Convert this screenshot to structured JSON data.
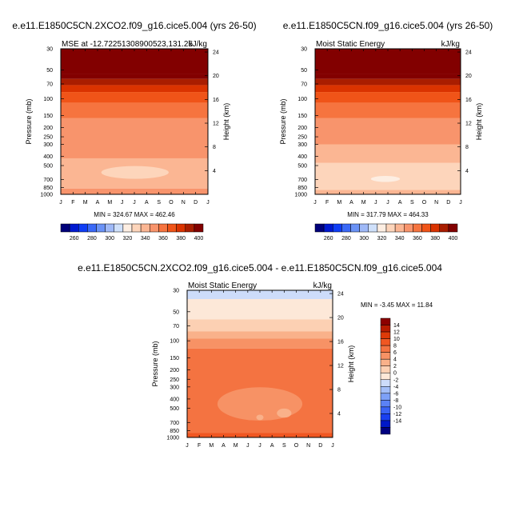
{
  "chart_data": [
    {
      "type": "heatmap",
      "title": "e.e11.E1850C5CN.2XCO2.f09_g16.cice5.004 (yrs 26-50)",
      "left_subtitle": "MSE at -12.72251308900523,131.25",
      "right_subtitle": "kJ/kg",
      "ylabel": "Pressure (mb)",
      "ylabel_right": "Height (km)",
      "x_ticks": [
        "J",
        "F",
        "M",
        "A",
        "M",
        "J",
        "J",
        "A",
        "S",
        "O",
        "N",
        "D",
        "J"
      ],
      "y_ticks": [
        "30",
        "50",
        "70",
        "100",
        "150",
        "200",
        "250",
        "300",
        "400",
        "500",
        "700",
        "850",
        "1000"
      ],
      "y_right_ticks": [
        "24",
        "20",
        "16",
        "12",
        "8",
        "4"
      ],
      "stats": "MIN = 324.67 MAX = 462.46",
      "colorbar_labels": [
        "260",
        "280",
        "300",
        "320",
        "340",
        "360",
        "380",
        "400"
      ],
      "bands": [
        {
          "p_top": 30,
          "p_bot": 55,
          "value": 410
        },
        {
          "p_top": 55,
          "p_bot": 62,
          "value": 400
        },
        {
          "p_top": 62,
          "p_bot": 72,
          "value": 390
        },
        {
          "p_top": 72,
          "p_bot": 85,
          "value": 380
        },
        {
          "p_top": 85,
          "p_bot": 110,
          "value": 370
        },
        {
          "p_top": 110,
          "p_bot": 160,
          "value": 360
        },
        {
          "p_top": 160,
          "p_bot": 420,
          "value": 350
        },
        {
          "p_top": 420,
          "p_bot": 870,
          "value": 340
        },
        {
          "p_top": 870,
          "p_bot": 1000,
          "value": 350
        }
      ],
      "blobs": [
        {
          "month_from": 3.3,
          "month_to": 8.8,
          "p": 590,
          "p_half": 90,
          "value": 330
        }
      ]
    },
    {
      "type": "heatmap",
      "title": "e.e11.E1850C5CN.f09_g16.cice5.004 (yrs 26-50)",
      "left_subtitle": "Moist Static Energy",
      "right_subtitle": "kJ/kg",
      "ylabel": "Pressure (mb)",
      "ylabel_right": "Height (km)",
      "x_ticks": [
        "J",
        "F",
        "M",
        "A",
        "M",
        "J",
        "J",
        "A",
        "S",
        "O",
        "N",
        "D",
        "J"
      ],
      "y_ticks": [
        "30",
        "50",
        "70",
        "100",
        "150",
        "200",
        "250",
        "300",
        "400",
        "500",
        "700",
        "850",
        "1000"
      ],
      "y_right_ticks": [
        "24",
        "20",
        "16",
        "12",
        "8",
        "4"
      ],
      "stats": "MIN = 317.79 MAX = 464.33",
      "colorbar_labels": [
        "260",
        "280",
        "300",
        "320",
        "340",
        "360",
        "380",
        "400"
      ],
      "bands": [
        {
          "p_top": 30,
          "p_bot": 55,
          "value": 410
        },
        {
          "p_top": 55,
          "p_bot": 62,
          "value": 400
        },
        {
          "p_top": 62,
          "p_bot": 72,
          "value": 390
        },
        {
          "p_top": 72,
          "p_bot": 85,
          "value": 380
        },
        {
          "p_top": 85,
          "p_bot": 110,
          "value": 370
        },
        {
          "p_top": 110,
          "p_bot": 160,
          "value": 360
        },
        {
          "p_top": 160,
          "p_bot": 300,
          "value": 350
        },
        {
          "p_top": 300,
          "p_bot": 470,
          "value": 340
        },
        {
          "p_top": 470,
          "p_bot": 900,
          "value": 330
        },
        {
          "p_top": 900,
          "p_bot": 1000,
          "value": 340
        }
      ],
      "blobs": [
        {
          "month_from": 4.6,
          "month_to": 7.0,
          "p": 690,
          "p_half": 50,
          "value": 320
        }
      ]
    },
    {
      "type": "heatmap",
      "title": "e.e11.E1850C5CN.2XCO2.f09_g16.cice5.004 - e.e11.E1850C5CN.f09_g16.cice5.004",
      "left_subtitle": "Moist Static Energy",
      "right_subtitle": "kJ/kg",
      "ylabel": "Pressure (mb)",
      "ylabel_right": "Height (km)",
      "x_ticks": [
        "J",
        "F",
        "M",
        "A",
        "M",
        "J",
        "J",
        "A",
        "S",
        "O",
        "N",
        "D",
        "J"
      ],
      "y_ticks": [
        "30",
        "50",
        "70",
        "100",
        "150",
        "200",
        "250",
        "300",
        "400",
        "500",
        "700",
        "850",
        "1000"
      ],
      "y_right_ticks": [
        "24",
        "20",
        "16",
        "12",
        "8",
        "4"
      ],
      "stats": "MIN =  -3.45 MAX =  11.84",
      "colorbar_labels": [
        "14",
        "12",
        "10",
        "8",
        "6",
        "4",
        "2",
        "0",
        "-2",
        "-4",
        "-6",
        "-8",
        "-10",
        "-12",
        "-14"
      ],
      "bands": [
        {
          "p_top": 25,
          "p_bot": 37,
          "value": -1
        },
        {
          "p_top": 37,
          "p_bot": 60,
          "value": 1
        },
        {
          "p_top": 60,
          "p_bot": 80,
          "value": 3
        },
        {
          "p_top": 80,
          "p_bot": 95,
          "value": 5
        },
        {
          "p_top": 95,
          "p_bot": 120,
          "value": 7
        },
        {
          "p_top": 120,
          "p_bot": 900,
          "value": 9
        },
        {
          "p_top": 900,
          "p_bot": 1000,
          "value": 11
        }
      ],
      "blobs": [
        {
          "month_from": 2.5,
          "month_to": 9.5,
          "p": 450,
          "p_half": 170,
          "value": 7
        },
        {
          "month_from": 7.4,
          "month_to": 8.6,
          "p": 560,
          "p_half": 60,
          "value": 5
        },
        {
          "month_from": 5.7,
          "month_to": 6.3,
          "p": 620,
          "p_half": 40,
          "value": 5
        }
      ]
    }
  ]
}
